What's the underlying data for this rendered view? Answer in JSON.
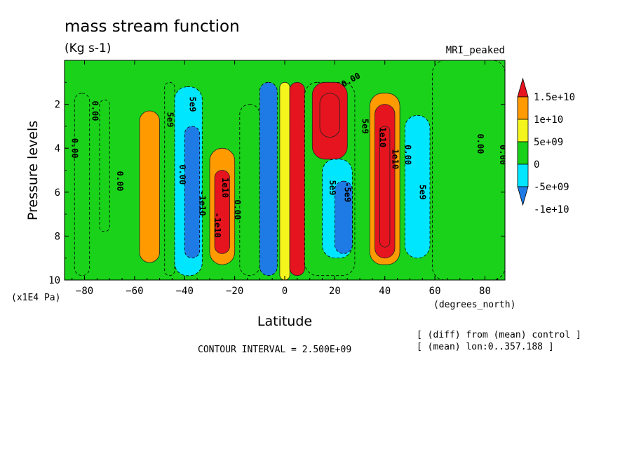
{
  "chart_data": {
    "type": "heatmap",
    "title": "mass stream function",
    "subtitle": "(Kg s-1)",
    "dataset_label": "MRI_peaked",
    "xlabel": "Latitude",
    "xunits": "(degrees_north)",
    "ylabel": "Pressure levels",
    "yunits": "(x1E4 Pa)",
    "xlim": [
      -88,
      88
    ],
    "ylim": [
      0,
      10
    ],
    "y_inverted": true,
    "x_ticks": [
      -80,
      -60,
      -40,
      -20,
      0,
      20,
      40,
      60,
      80
    ],
    "x_tick_labels": [
      "−80",
      "−60",
      "−40",
      "−20",
      "0",
      "20",
      "40",
      "60",
      "80"
    ],
    "y_ticks": [
      2,
      4,
      6,
      8,
      10
    ],
    "y_tick_labels": [
      "2",
      "4",
      "6",
      "8",
      "10"
    ],
    "contour_interval_text": "CONTOUR INTERVAL = 2.500E+09",
    "notes": [
      "[ (diff) from (mean) control ]",
      "[ (mean) lon:0..357.188 ]"
    ],
    "colorbar": {
      "colors": [
        "#1e7be6",
        "#00e6ff",
        "#19d219",
        "#f5f51e",
        "#ff9a00",
        "#e6141e"
      ],
      "labels": [
        "-1e+10",
        "-5e+09",
        "0",
        "5e+09",
        "1e+10",
        "1.5e+10"
      ],
      "boundaries": [
        -10000000000,
        -5000000000,
        0,
        5000000000,
        10000000000,
        15000000000
      ]
    },
    "cells": [
      {
        "lat": [
          -84,
          -78
        ],
        "p": [
          1.5,
          9.8
        ],
        "value": -3000000000
      },
      {
        "lat": [
          -74,
          -70
        ],
        "p": [
          1.8,
          7.8
        ],
        "value": -3000000000
      },
      {
        "lat": [
          -58,
          -50
        ],
        "p": [
          2.3,
          9.2
        ],
        "value": 7000000000
      },
      {
        "lat": [
          -48,
          -44
        ],
        "p": [
          1.0,
          9.8
        ],
        "value": -3000000000
      },
      {
        "lat": [
          -44,
          -33
        ],
        "p": [
          1.2,
          9.8
        ],
        "value": -7000000000
      },
      {
        "lat": [
          -40,
          -34
        ],
        "p": [
          3.0,
          9.0
        ],
        "value": -11000000000
      },
      {
        "lat": [
          -30,
          -20
        ],
        "p": [
          4.0,
          9.3
        ],
        "value": 7000000000
      },
      {
        "lat": [
          -28,
          -22
        ],
        "p": [
          5.0,
          8.8
        ],
        "value": 11000000000
      },
      {
        "lat": [
          -18,
          -10
        ],
        "p": [
          2.0,
          9.8
        ],
        "value": -3000000000
      },
      {
        "lat": [
          -10,
          -3
        ],
        "p": [
          1.0,
          9.8
        ],
        "value": -11000000000
      },
      {
        "lat": [
          -2,
          2
        ],
        "p": [
          1.0,
          10.0
        ],
        "value": 3000000000
      },
      {
        "lat": [
          2,
          8
        ],
        "p": [
          1.0,
          9.8
        ],
        "value": 16000000000
      },
      {
        "lat": [
          8,
          28
        ],
        "p": [
          1.0,
          9.8
        ],
        "value": -3000000000
      },
      {
        "lat": [
          11,
          25
        ],
        "p": [
          1.0,
          4.5
        ],
        "value": 12000000000
      },
      {
        "lat": [
          14,
          22
        ],
        "p": [
          1.5,
          3.5
        ],
        "value": 16000000000
      },
      {
        "lat": [
          15,
          27
        ],
        "p": [
          4.5,
          9.0
        ],
        "value": -7000000000
      },
      {
        "lat": [
          20,
          27
        ],
        "p": [
          5.5,
          8.8
        ],
        "value": -11000000000
      },
      {
        "lat": [
          34,
          46
        ],
        "p": [
          1.5,
          9.3
        ],
        "value": 7000000000
      },
      {
        "lat": [
          36,
          44
        ],
        "p": [
          2.0,
          9.0
        ],
        "value": 12000000000
      },
      {
        "lat": [
          38,
          42
        ],
        "p": [
          3.0,
          8.5
        ],
        "value": 16000000000
      },
      {
        "lat": [
          48,
          58
        ],
        "p": [
          2.5,
          9.0
        ],
        "value": -7000000000
      },
      {
        "lat": [
          59,
          88
        ],
        "p": [
          0.0,
          10.0
        ],
        "value": -3000000000
      }
    ],
    "contour_labels": [
      {
        "text": "0.00",
        "lat": -85,
        "p": 4.0,
        "rotate": 90
      },
      {
        "text": "0.00",
        "lat": -77,
        "p": 2.3,
        "rotate": 90
      },
      {
        "text": "0.00",
        "lat": -67,
        "p": 5.5,
        "rotate": 90
      },
      {
        "text": "5e9",
        "lat": -47,
        "p": 2.7,
        "rotate": 90
      },
      {
        "text": "5e9",
        "lat": -38,
        "p": 2.0,
        "rotate": 90
      },
      {
        "text": "0.00",
        "lat": -42,
        "p": 5.2,
        "rotate": 90
      },
      {
        "text": "-1e10",
        "lat": -34,
        "p": 6.5,
        "rotate": 90
      },
      {
        "text": "-1e10",
        "lat": -28,
        "p": 7.5,
        "rotate": 90
      },
      {
        "text": "1e10",
        "lat": -25,
        "p": 5.8,
        "rotate": 90
      },
      {
        "text": "0.00",
        "lat": -20,
        "p": 6.8,
        "rotate": 90
      },
      {
        "text": "0.00",
        "lat": 27,
        "p": 1.0,
        "rotate": -30
      },
      {
        "text": "5e9",
        "lat": 31,
        "p": 3.0,
        "rotate": 90
      },
      {
        "text": "-5e9",
        "lat": 24,
        "p": 6.0,
        "rotate": 90
      },
      {
        "text": "5e9",
        "lat": 18,
        "p": 5.8,
        "rotate": 90
      },
      {
        "text": "1e10",
        "lat": 38,
        "p": 3.5,
        "rotate": 90
      },
      {
        "text": "1e10",
        "lat": 43,
        "p": 4.5,
        "rotate": 90
      },
      {
        "text": "0.00",
        "lat": 48,
        "p": 4.3,
        "rotate": 90
      },
      {
        "text": "5e9",
        "lat": 54,
        "p": 6.0,
        "rotate": 90
      },
      {
        "text": "0.00",
        "lat": 77,
        "p": 3.8,
        "rotate": 90
      },
      {
        "text": "0.00",
        "lat": 86,
        "p": 4.3,
        "rotate": 90
      }
    ]
  }
}
